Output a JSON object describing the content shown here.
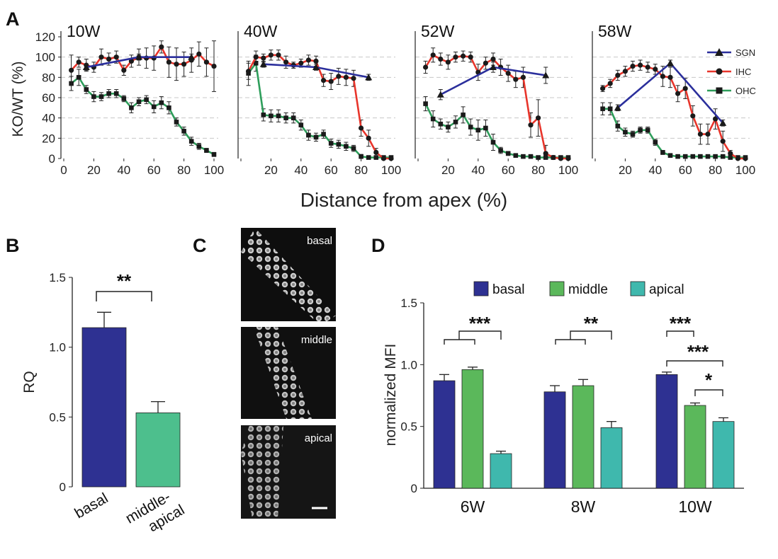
{
  "colors": {
    "sgn": "#2b2f9c",
    "ihc": "#e8352b",
    "ohc": "#2e9e5b",
    "marker": "#1a1a1a",
    "basal": "#2e3192",
    "middle": "#5bb85b",
    "apical": "#3fb8ad",
    "middle_apical": "#4dbf8d"
  },
  "panels": {
    "A": {
      "letter": "A"
    },
    "B": {
      "letter": "B"
    },
    "C": {
      "letter": "C",
      "image_labels": [
        "basal",
        "middle",
        "apical"
      ]
    },
    "D": {
      "letter": "D"
    }
  },
  "chart_data": [
    {
      "id": "A",
      "type": "line",
      "xlabel": "Distance from apex (%)",
      "ylabel": "KO/WT (%)",
      "ylim": [
        0,
        120
      ],
      "xlim": [
        0,
        100
      ],
      "yticks": [
        0,
        20,
        40,
        60,
        80,
        100,
        120
      ],
      "xticks": [
        0,
        20,
        40,
        60,
        80,
        100
      ],
      "grid": "dashed horizontal",
      "legend": {
        "position": "top-right",
        "entries": [
          "SGN",
          "IHC",
          "OHC"
        ],
        "markers": [
          "triangle",
          "circle",
          "square"
        ]
      },
      "subplots": [
        {
          "title": "10W",
          "series": [
            {
              "name": "SGN",
              "x": [
                15,
                50,
                85
              ],
              "y": [
                90,
                100,
                100
              ],
              "err": [
                3,
                3,
                3
              ]
            },
            {
              "name": "IHC",
              "x": [
                5,
                10,
                15,
                20,
                25,
                30,
                35,
                40,
                45,
                50,
                55,
                60,
                65,
                70,
                75,
                80,
                85,
                90,
                95,
                100
              ],
              "y": [
                87,
                95,
                92,
                90,
                100,
                98,
                100,
                87,
                96,
                100,
                99,
                99,
                110,
                95,
                93,
                93,
                97,
                103,
                95,
                91
              ],
              "err": [
                15,
                5,
                6,
                5,
                8,
                6,
                6,
                5,
                6,
                8,
                10,
                12,
                6,
                15,
                16,
                12,
                12,
                12,
                14,
                25
              ]
            },
            {
              "name": "OHC",
              "x": [
                5,
                10,
                15,
                20,
                25,
                30,
                35,
                40,
                45,
                50,
                55,
                60,
                65,
                70,
                75,
                80,
                85,
                90,
                95,
                100
              ],
              "y": [
                74,
                80,
                68,
                61,
                61,
                64,
                64,
                59,
                50,
                56,
                58,
                51,
                55,
                50,
                36,
                27,
                17,
                12,
                8,
                4
              ],
              "err": [
                7,
                8,
                4,
                5,
                4,
                4,
                4,
                3,
                5,
                4,
                4,
                6,
                6,
                6,
                4,
                4,
                4,
                3,
                2,
                2
              ]
            }
          ]
        },
        {
          "title": "40W",
          "series": [
            {
              "name": "SGN",
              "x": [
                15,
                50,
                85
              ],
              "y": [
                93,
                90,
                80
              ],
              "err": [
                3,
                3,
                3
              ]
            },
            {
              "name": "IHC",
              "x": [
                5,
                10,
                15,
                20,
                25,
                30,
                35,
                40,
                45,
                50,
                55,
                60,
                65,
                70,
                75,
                80,
                85,
                90,
                95,
                100
              ],
              "y": [
                86,
                100,
                99,
                102,
                102,
                95,
                92,
                94,
                97,
                96,
                77,
                76,
                81,
                80,
                79,
                30,
                20,
                6,
                0,
                0
              ],
              "err": [
                8,
                6,
                4,
                5,
                5,
                6,
                3,
                4,
                5,
                5,
                6,
                8,
                8,
                8,
                8,
                8,
                8,
                4,
                0,
                0
              ]
            },
            {
              "name": "OHC",
              "x": [
                5,
                10,
                15,
                20,
                25,
                30,
                35,
                40,
                45,
                50,
                55,
                60,
                65,
                70,
                75,
                80,
                85,
                90,
                95,
                100
              ],
              "y": [
                84,
                94,
                43,
                42,
                42,
                40,
                40,
                33,
                23,
                21,
                24,
                15,
                14,
                12,
                10,
                2,
                1,
                1,
                1,
                1
              ],
              "err": [
                12,
                8,
                6,
                6,
                6,
                5,
                5,
                5,
                5,
                4,
                4,
                4,
                4,
                4,
                3,
                2,
                1,
                1,
                1,
                1
              ]
            }
          ]
        },
        {
          "title": "52W",
          "series": [
            {
              "name": "SGN",
              "x": [
                15,
                50,
                85
              ],
              "y": [
                63,
                90,
                82
              ],
              "err": [
                5,
                5,
                8
              ]
            },
            {
              "name": "IHC",
              "x": [
                5,
                10,
                15,
                20,
                25,
                30,
                35,
                40,
                45,
                50,
                55,
                60,
                65,
                70,
                75,
                80,
                85,
                90,
                95,
                100
              ],
              "y": [
                90,
                102,
                98,
                95,
                100,
                101,
                100,
                85,
                94,
                98,
                90,
                84,
                78,
                80,
                33,
                40,
                5,
                1,
                0,
                0
              ],
              "err": [
                6,
                7,
                6,
                7,
                5,
                5,
                5,
                8,
                6,
                6,
                8,
                8,
                8,
                10,
                12,
                18,
                8,
                1,
                0,
                0
              ]
            },
            {
              "name": "OHC",
              "x": [
                5,
                10,
                15,
                20,
                25,
                30,
                35,
                40,
                45,
                50,
                55,
                60,
                65,
                70,
                75,
                80,
                85,
                90,
                95,
                100
              ],
              "y": [
                54,
                39,
                34,
                31,
                36,
                43,
                31,
                28,
                30,
                16,
                8,
                5,
                3,
                2,
                2,
                1,
                1,
                1,
                1,
                1
              ],
              "err": [
                7,
                8,
                5,
                5,
                6,
                8,
                8,
                10,
                8,
                8,
                3,
                2,
                1,
                1,
                1,
                1,
                1,
                1,
                1,
                1
              ]
            }
          ]
        },
        {
          "title": "58W",
          "series": [
            {
              "name": "SGN",
              "x": [
                15,
                50,
                85
              ],
              "y": [
                50,
                94,
                35
              ],
              "err": [
                3,
                3,
                3
              ]
            },
            {
              "name": "IHC",
              "x": [
                5,
                10,
                15,
                20,
                25,
                30,
                35,
                40,
                45,
                50,
                55,
                60,
                65,
                70,
                75,
                80,
                85,
                90,
                95,
                100
              ],
              "y": [
                69,
                74,
                82,
                86,
                91,
                92,
                90,
                88,
                81,
                80,
                64,
                69,
                42,
                24,
                24,
                39,
                17,
                5,
                0,
                0
              ],
              "err": [
                3,
                4,
                5,
                5,
                5,
                5,
                5,
                5,
                10,
                10,
                8,
                10,
                10,
                10,
                10,
                10,
                10,
                3,
                0,
                0
              ]
            },
            {
              "name": "OHC",
              "x": [
                5,
                10,
                15,
                20,
                25,
                30,
                35,
                40,
                45,
                50,
                55,
                60,
                65,
                70,
                75,
                80,
                85,
                90,
                95,
                100
              ],
              "y": [
                49,
                49,
                32,
                26,
                24,
                28,
                28,
                16,
                6,
                3,
                2,
                2,
                2,
                2,
                2,
                2,
                2,
                1,
                1,
                1
              ],
              "err": [
                6,
                6,
                5,
                4,
                3,
                3,
                3,
                3,
                2,
                1,
                1,
                1,
                1,
                1,
                1,
                1,
                1,
                1,
                1,
                1
              ]
            }
          ]
        }
      ]
    },
    {
      "id": "B",
      "type": "bar",
      "ylabel": "RQ",
      "ylim": [
        0,
        1.5
      ],
      "yticks": [
        "0",
        "0.5",
        "1.0",
        "1.5"
      ],
      "categories": [
        "basal",
        "middle-apical"
      ],
      "category_lines": [
        [
          "basal"
        ],
        [
          "middle-",
          "apical"
        ]
      ],
      "values": [
        1.14,
        0.53
      ],
      "err": [
        0.11,
        0.08
      ],
      "significance": "**"
    },
    {
      "id": "D",
      "type": "bar",
      "ylabel": "normalized MFI",
      "ylim": [
        0,
        1.5
      ],
      "yticks": [
        "0",
        "0.5",
        "1.0",
        "1.5"
      ],
      "categories": [
        "6W",
        "8W",
        "10W"
      ],
      "legend": {
        "position": "top",
        "entries": [
          "basal",
          "middle",
          "apical"
        ]
      },
      "series": [
        {
          "name": "basal",
          "values": [
            0.87,
            0.78,
            0.92
          ],
          "err": [
            0.05,
            0.05,
            0.02
          ]
        },
        {
          "name": "middle",
          "values": [
            0.96,
            0.83,
            0.67
          ],
          "err": [
            0.02,
            0.05,
            0.02
          ]
        },
        {
          "name": "apical",
          "values": [
            0.28,
            0.49,
            0.54
          ],
          "err": [
            0.02,
            0.05,
            0.03
          ]
        }
      ],
      "significance": [
        "***",
        "**",
        "***",
        "***",
        "*"
      ]
    }
  ]
}
